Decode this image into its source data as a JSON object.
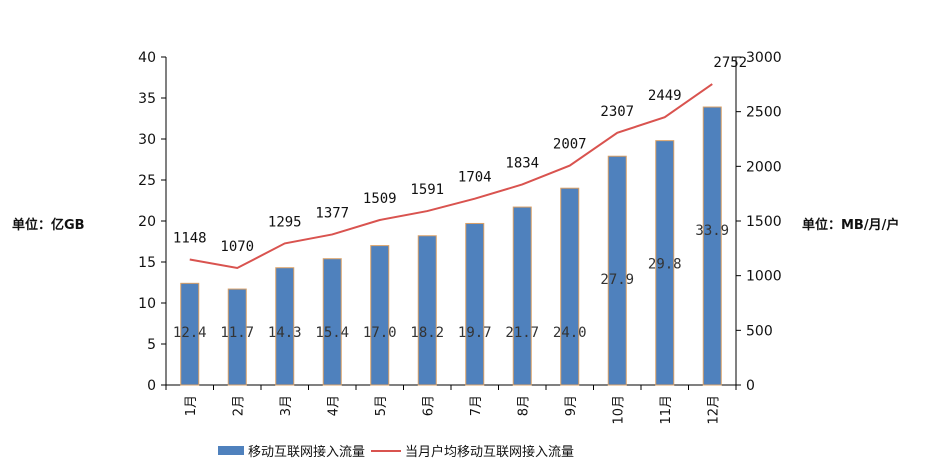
{
  "chart_data": {
    "type": "bar+line",
    "categories": [
      "1月",
      "2月",
      "3月",
      "4月",
      "5月",
      "6月",
      "7月",
      "8月",
      "9月",
      "10月",
      "11月",
      "12月"
    ],
    "series": [
      {
        "name": "移动互联网接入流量",
        "type": "bar",
        "axis": "left",
        "color": "#4f81bd",
        "values": [
          12.4,
          11.7,
          14.3,
          15.4,
          17.0,
          18.2,
          19.7,
          21.7,
          24.0,
          27.9,
          29.8,
          33.9
        ],
        "labels": [
          "12.4",
          "11.7",
          "14.3",
          "15.4",
          "17.0",
          "18.2",
          "19.7",
          "21.7",
          "24.0",
          "27.9",
          "29.8",
          "33.9"
        ]
      },
      {
        "name": "当月户均移动互联网接入流量",
        "type": "line",
        "axis": "right",
        "color": "#d9534f",
        "values": [
          1148,
          1070,
          1295,
          1377,
          1509,
          1591,
          1704,
          1834,
          2007,
          2307,
          2449,
          2752
        ],
        "labels": [
          "1148",
          "1070",
          "1295",
          "1377",
          "1509",
          "1591",
          "1704",
          "1834",
          "2007",
          "2307",
          "2449",
          "2752"
        ]
      }
    ],
    "ylabel_left": "单位：亿GB",
    "ylabel_right": "单位：MB/月/户",
    "ylim_left": [
      0,
      40
    ],
    "ylim_right": [
      0,
      3000
    ],
    "yticks_left": [
      "0",
      "5",
      "10",
      "15",
      "20",
      "25",
      "30",
      "35",
      "40"
    ],
    "yticks_right": [
      "0",
      "500",
      "1000",
      "1500",
      "2000",
      "2500",
      "3000"
    ],
    "grid": false,
    "legend_position": "bottom"
  }
}
